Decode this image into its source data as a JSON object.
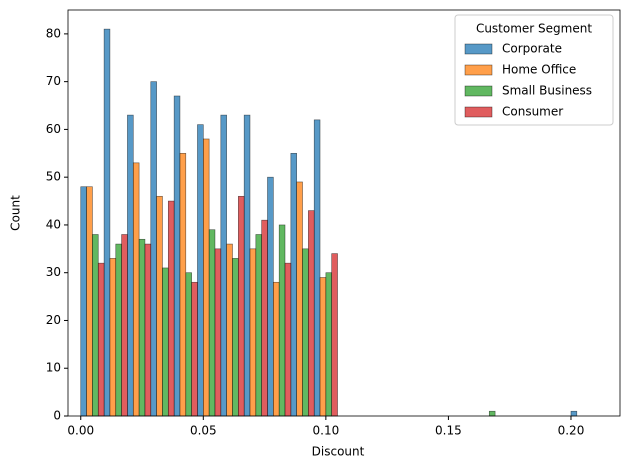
{
  "chart_data": {
    "type": "histogram",
    "multiple": "dodge",
    "x_label": "Discount",
    "y_label": "Count",
    "bins": [
      0,
      0.009524,
      0.019048,
      0.028571,
      0.038095,
      0.047619,
      0.057143,
      0.066667,
      0.07619,
      0.085714,
      0.095238,
      0.104762,
      0.114286,
      0.12381,
      0.133333,
      0.142857,
      0.152381,
      0.161905,
      0.171429,
      0.180952,
      0.190476,
      0.2,
      0.209524
    ],
    "series": [
      {
        "name": "Corporate",
        "color": "#1f77b4",
        "values": [
          48,
          81,
          63,
          70,
          67,
          61,
          63,
          63,
          50,
          55,
          62,
          0,
          0,
          0,
          0,
          0,
          0,
          0,
          0,
          0,
          0,
          1
        ]
      },
      {
        "name": "Home Office",
        "color": "#ff7f0e",
        "values": [
          48,
          33,
          53,
          46,
          55,
          58,
          36,
          35,
          28,
          49,
          29,
          0,
          0,
          0,
          0,
          0,
          0,
          0,
          0,
          0,
          0,
          0
        ]
      },
      {
        "name": "Small Business",
        "color": "#2ca02c",
        "values": [
          38,
          36,
          37,
          31,
          30,
          39,
          33,
          38,
          40,
          35,
          30,
          0,
          0,
          0,
          0,
          0,
          0,
          1,
          0,
          0,
          0,
          0
        ]
      },
      {
        "name": "Consumer",
        "color": "#d62728",
        "values": [
          32,
          38,
          36,
          45,
          28,
          35,
          46,
          41,
          32,
          43,
          34,
          0,
          0,
          0,
          0,
          0,
          0,
          0,
          0,
          0,
          0,
          0
        ]
      }
    ],
    "legend_title": "Customer Segment",
    "legend": "upper right",
    "xlim": [
      -0.0052,
      0.22
    ],
    "ylim": [
      0,
      85
    ],
    "xticks": [
      {
        "value": 0,
        "label": "0.00"
      },
      0.05,
      {
        "value": 0.1,
        "label": "0.10"
      },
      0.15,
      {
        "value": 0.2,
        "label": "0.20"
      }
    ],
    "yticks": [
      0,
      10,
      20,
      30,
      40,
      50,
      60,
      70,
      80
    ]
  }
}
